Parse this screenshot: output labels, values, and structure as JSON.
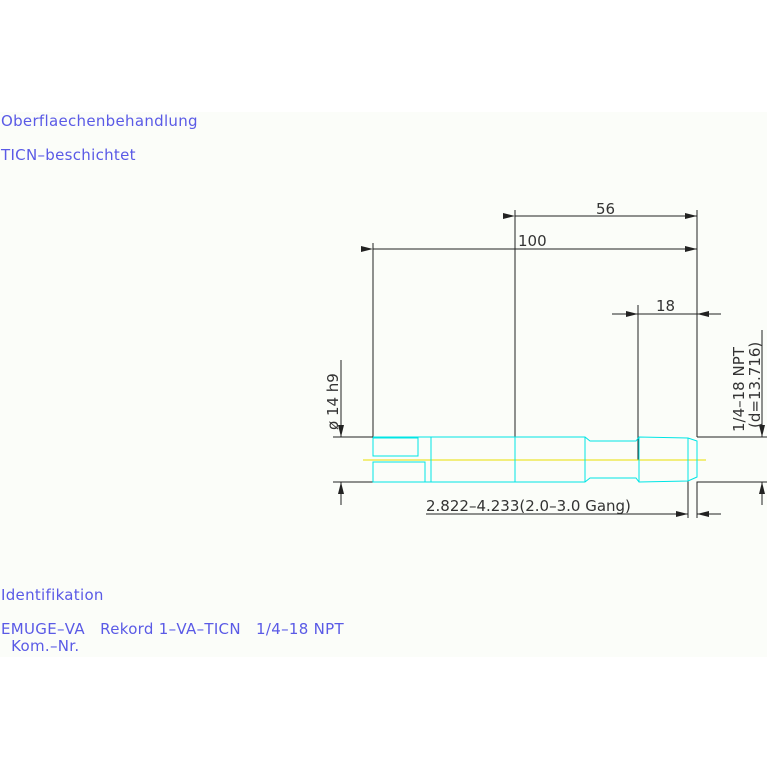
{
  "notes": {
    "surface_heading": "Oberflaechenbehandlung",
    "surface_value": "TICN–beschichtet",
    "ident_heading": "Identifikation",
    "ident_value": "EMUGE–VA   Rekord 1–VA–TICN   1/4–18 NPT",
    "kom_nr": "  Kom.–Nr."
  },
  "dimensions": {
    "overall_length": "100",
    "thread_section_length": "56",
    "thread_length": "18",
    "shank_diameter": "ø 14 h9",
    "thread_size": "1/4–18 NPT",
    "thread_diameter": "(d=13.716)",
    "core_hole": "2.822–4.233(2.0–3.0 Gang)"
  },
  "colors": {
    "text": "#5a5ae6",
    "tool_outline": "#00e5e5",
    "centerline": "#e8e000",
    "dimension_lines": "#222222"
  }
}
